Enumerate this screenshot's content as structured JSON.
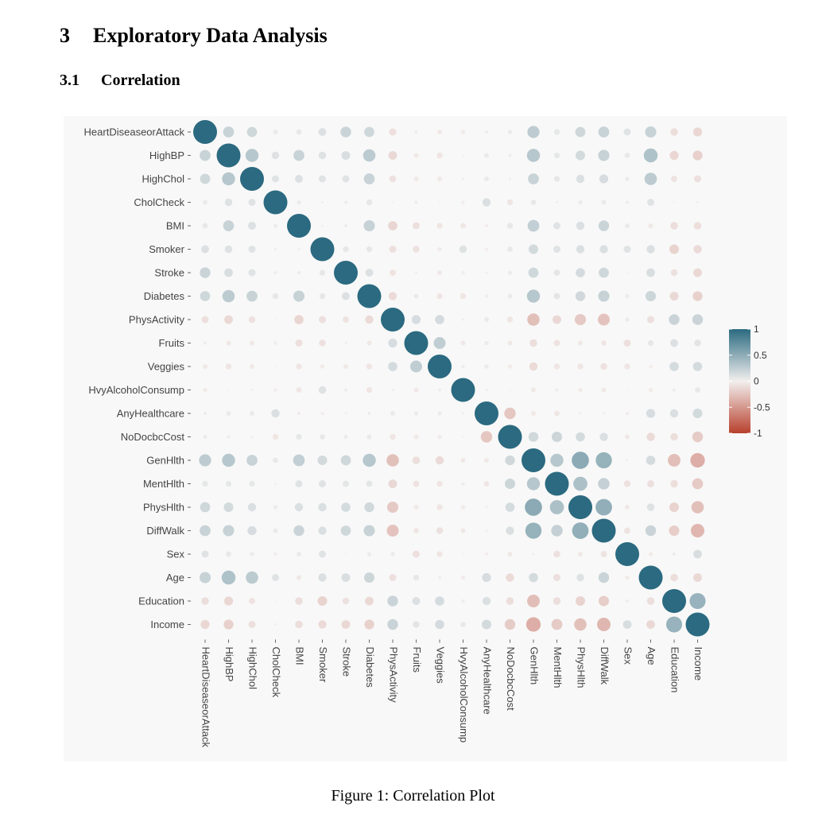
{
  "section": {
    "number": "3",
    "title": "Exploratory Data Analysis"
  },
  "subsection": {
    "number": "3.1",
    "title": "Correlation"
  },
  "caption": "Figure 1: Correlation Plot",
  "colors": {
    "positive": "#2b6a80",
    "neutral": "#f2efee",
    "negative": "#b8402d",
    "panel_bg": "#f8f8f8"
  },
  "chart_data": {
    "type": "heatmap",
    "style": "correlation-circle-plot",
    "variables": [
      "HeartDiseaseorAttack",
      "HighBP",
      "HighChol",
      "CholCheck",
      "BMI",
      "Smoker",
      "Stroke",
      "Diabetes",
      "PhysActivity",
      "Fruits",
      "Veggies",
      "HvyAlcoholConsump",
      "AnyHealthcare",
      "NoDocbcCost",
      "GenHlth",
      "MentHlth",
      "PhysHlth",
      "DiffWalk",
      "Sex",
      "Age",
      "Education",
      "Income"
    ],
    "legend": {
      "ticks": [
        "1",
        "0.5",
        "0",
        "-0.5",
        "-1"
      ],
      "range": [
        -1,
        1
      ],
      "position": "right"
    },
    "correlations": [
      [
        "HeartDiseaseorAttack",
        "HighBP",
        0.21
      ],
      [
        "HeartDiseaseorAttack",
        "HighChol",
        0.18
      ],
      [
        "HeartDiseaseorAttack",
        "CholCheck",
        0.04
      ],
      [
        "HeartDiseaseorAttack",
        "BMI",
        0.05
      ],
      [
        "HeartDiseaseorAttack",
        "Smoker",
        0.11
      ],
      [
        "HeartDiseaseorAttack",
        "Stroke",
        0.2
      ],
      [
        "HeartDiseaseorAttack",
        "Diabetes",
        0.18
      ],
      [
        "HeartDiseaseorAttack",
        "PhysActivity",
        -0.09
      ],
      [
        "HeartDiseaseorAttack",
        "Fruits",
        -0.02
      ],
      [
        "HeartDiseaseorAttack",
        "Veggies",
        -0.04
      ],
      [
        "HeartDiseaseorAttack",
        "HvyAlcoholConsump",
        -0.03
      ],
      [
        "HeartDiseaseorAttack",
        "AnyHealthcare",
        0.02
      ],
      [
        "HeartDiseaseorAttack",
        "NoDocbcCost",
        0.03
      ],
      [
        "HeartDiseaseorAttack",
        "GenHlth",
        0.26
      ],
      [
        "HeartDiseaseorAttack",
        "MentHlth",
        0.06
      ],
      [
        "HeartDiseaseorAttack",
        "PhysHlth",
        0.18
      ],
      [
        "HeartDiseaseorAttack",
        "DiffWalk",
        0.21
      ],
      [
        "HeartDiseaseorAttack",
        "Sex",
        0.09
      ],
      [
        "HeartDiseaseorAttack",
        "Age",
        0.22
      ],
      [
        "HeartDiseaseorAttack",
        "Education",
        -0.1
      ],
      [
        "HeartDiseaseorAttack",
        "Income",
        -0.14
      ],
      [
        "HighBP",
        "HighChol",
        0.3
      ],
      [
        "HighBP",
        "CholCheck",
        0.1
      ],
      [
        "HighBP",
        "BMI",
        0.21
      ],
      [
        "HighBP",
        "Smoker",
        0.1
      ],
      [
        "HighBP",
        "Stroke",
        0.13
      ],
      [
        "HighBP",
        "Diabetes",
        0.27
      ],
      [
        "HighBP",
        "PhysActivity",
        -0.13
      ],
      [
        "HighBP",
        "Fruits",
        -0.04
      ],
      [
        "HighBP",
        "Veggies",
        -0.06
      ],
      [
        "HighBP",
        "HvyAlcoholConsump",
        -0.0
      ],
      [
        "HighBP",
        "AnyHealthcare",
        0.04
      ],
      [
        "HighBP",
        "NoDocbcCost",
        0.02
      ],
      [
        "HighBP",
        "GenHlth",
        0.3
      ],
      [
        "HighBP",
        "MentHlth",
        0.06
      ],
      [
        "HighBP",
        "PhysHlth",
        0.16
      ],
      [
        "HighBP",
        "DiffWalk",
        0.22
      ],
      [
        "HighBP",
        "Sex",
        0.05
      ],
      [
        "HighBP",
        "Age",
        0.34
      ],
      [
        "HighBP",
        "Education",
        -0.14
      ],
      [
        "HighBP",
        "Income",
        -0.17
      ],
      [
        "HighChol",
        "CholCheck",
        0.09
      ],
      [
        "HighChol",
        "BMI",
        0.11
      ],
      [
        "HighChol",
        "Smoker",
        0.09
      ],
      [
        "HighChol",
        "Stroke",
        0.09
      ],
      [
        "HighChol",
        "Diabetes",
        0.21
      ],
      [
        "HighChol",
        "PhysActivity",
        -0.08
      ],
      [
        "HighChol",
        "Fruits",
        -0.04
      ],
      [
        "HighChol",
        "Veggies",
        -0.04
      ],
      [
        "HighChol",
        "HvyAlcoholConsump",
        -0.01
      ],
      [
        "HighChol",
        "AnyHealthcare",
        0.04
      ],
      [
        "HighChol",
        "NoDocbcCost",
        0.01
      ],
      [
        "HighChol",
        "GenHlth",
        0.21
      ],
      [
        "HighChol",
        "MentHlth",
        0.06
      ],
      [
        "HighChol",
        "PhysHlth",
        0.12
      ],
      [
        "HighChol",
        "DiffWalk",
        0.14
      ],
      [
        "HighChol",
        "Sex",
        0.03
      ],
      [
        "HighChol",
        "Age",
        0.27
      ],
      [
        "HighChol",
        "Education",
        -0.07
      ],
      [
        "HighChol",
        "Income",
        -0.09
      ],
      [
        "CholCheck",
        "BMI",
        0.03
      ],
      [
        "CholCheck",
        "Smoker",
        -0.01
      ],
      [
        "CholCheck",
        "Stroke",
        0.02
      ],
      [
        "CholCheck",
        "Diabetes",
        0.06
      ],
      [
        "CholCheck",
        "PhysActivity",
        0.0
      ],
      [
        "CholCheck",
        "Fruits",
        0.02
      ],
      [
        "CholCheck",
        "Veggies",
        0.0
      ],
      [
        "CholCheck",
        "HvyAlcoholConsump",
        -0.02
      ],
      [
        "CholCheck",
        "AnyHealthcare",
        0.12
      ],
      [
        "CholCheck",
        "NoDocbcCost",
        -0.06
      ],
      [
        "CholCheck",
        "GenHlth",
        0.05
      ],
      [
        "CholCheck",
        "MentHlth",
        -0.01
      ],
      [
        "CholCheck",
        "PhysHlth",
        0.03
      ],
      [
        "CholCheck",
        "DiffWalk",
        0.04
      ],
      [
        "CholCheck",
        "Sex",
        -0.02
      ],
      [
        "CholCheck",
        "Age",
        0.09
      ],
      [
        "CholCheck",
        "Education",
        0.0
      ],
      [
        "CholCheck",
        "Income",
        0.01
      ],
      [
        "BMI",
        "Smoker",
        0.01
      ],
      [
        "BMI",
        "Stroke",
        0.02
      ],
      [
        "BMI",
        "Diabetes",
        0.22
      ],
      [
        "BMI",
        "PhysActivity",
        -0.15
      ],
      [
        "BMI",
        "Fruits",
        -0.09
      ],
      [
        "BMI",
        "Veggies",
        -0.06
      ],
      [
        "BMI",
        "HvyAlcoholConsump",
        -0.05
      ],
      [
        "BMI",
        "AnyHealthcare",
        -0.02
      ],
      [
        "BMI",
        "NoDocbcCost",
        0.06
      ],
      [
        "BMI",
        "GenHlth",
        0.24
      ],
      [
        "BMI",
        "MentHlth",
        0.09
      ],
      [
        "BMI",
        "PhysHlth",
        0.12
      ],
      [
        "BMI",
        "DiffWalk",
        0.2
      ],
      [
        "BMI",
        "Sex",
        0.04
      ],
      [
        "BMI",
        "Age",
        -0.04
      ],
      [
        "BMI",
        "Education",
        -0.1
      ],
      [
        "BMI",
        "Income",
        -0.1
      ],
      [
        "Smoker",
        "Stroke",
        0.06
      ],
      [
        "Smoker",
        "Diabetes",
        0.06
      ],
      [
        "Smoker",
        "PhysActivity",
        -0.09
      ],
      [
        "Smoker",
        "Fruits",
        -0.08
      ],
      [
        "Smoker",
        "Veggies",
        -0.03
      ],
      [
        "Smoker",
        "HvyAlcoholConsump",
        0.1
      ],
      [
        "Smoker",
        "AnyHealthcare",
        -0.02
      ],
      [
        "Smoker",
        "NoDocbcCost",
        0.05
      ],
      [
        "Smoker",
        "GenHlth",
        0.16
      ],
      [
        "Smoker",
        "MentHlth",
        0.09
      ],
      [
        "Smoker",
        "PhysHlth",
        0.12
      ],
      [
        "Smoker",
        "DiffWalk",
        0.12
      ],
      [
        "Smoker",
        "Sex",
        0.09
      ],
      [
        "Smoker",
        "Age",
        0.12
      ],
      [
        "Smoker",
        "Education",
        -0.16
      ],
      [
        "Smoker",
        "Income",
        -0.12
      ],
      [
        "Stroke",
        "Diabetes",
        0.11
      ],
      [
        "Stroke",
        "PhysActivity",
        -0.07
      ],
      [
        "Stroke",
        "Fruits",
        -0.01
      ],
      [
        "Stroke",
        "Veggies",
        -0.04
      ],
      [
        "Stroke",
        "HvyAlcoholConsump",
        -0.02
      ],
      [
        "Stroke",
        "AnyHealthcare",
        0.01
      ],
      [
        "Stroke",
        "NoDocbcCost",
        0.03
      ],
      [
        "Stroke",
        "GenHlth",
        0.18
      ],
      [
        "Stroke",
        "MentHlth",
        0.07
      ],
      [
        "Stroke",
        "PhysHlth",
        0.15
      ],
      [
        "Stroke",
        "DiffWalk",
        0.18
      ],
      [
        "Stroke",
        "Sex",
        0.0
      ],
      [
        "Stroke",
        "Age",
        0.13
      ],
      [
        "Stroke",
        "Education",
        -0.08
      ],
      [
        "Stroke",
        "Income",
        -0.13
      ],
      [
        "Diabetes",
        "PhysActivity",
        -0.12
      ],
      [
        "Diabetes",
        "Fruits",
        -0.04
      ],
      [
        "Diabetes",
        "Veggies",
        -0.06
      ],
      [
        "Diabetes",
        "HvyAlcoholConsump",
        -0.06
      ],
      [
        "Diabetes",
        "AnyHealthcare",
        0.02
      ],
      [
        "Diabetes",
        "NoDocbcCost",
        0.04
      ],
      [
        "Diabetes",
        "GenHlth",
        0.3
      ],
      [
        "Diabetes",
        "MentHlth",
        0.07
      ],
      [
        "Diabetes",
        "PhysHlth",
        0.17
      ],
      [
        "Diabetes",
        "DiffWalk",
        0.22
      ],
      [
        "Diabetes",
        "Sex",
        0.03
      ],
      [
        "Diabetes",
        "Age",
        0.19
      ],
      [
        "Diabetes",
        "Education",
        -0.13
      ],
      [
        "Diabetes",
        "Income",
        -0.17
      ],
      [
        "PhysActivity",
        "Fruits",
        0.14
      ],
      [
        "PhysActivity",
        "Veggies",
        0.15
      ],
      [
        "PhysActivity",
        "HvyAlcoholConsump",
        0.01
      ],
      [
        "PhysActivity",
        "AnyHealthcare",
        0.04
      ],
      [
        "PhysActivity",
        "NoDocbcCost",
        -0.06
      ],
      [
        "PhysActivity",
        "GenHlth",
        -0.27
      ],
      [
        "PhysActivity",
        "MentHlth",
        -0.13
      ],
      [
        "PhysActivity",
        "PhysHlth",
        -0.22
      ],
      [
        "PhysActivity",
        "DiffWalk",
        -0.25
      ],
      [
        "PhysActivity",
        "Sex",
        0.03
      ],
      [
        "PhysActivity",
        "Age",
        -0.09
      ],
      [
        "PhysActivity",
        "Education",
        0.2
      ],
      [
        "PhysActivity",
        "Income",
        0.2
      ],
      [
        "Fruits",
        "Veggies",
        0.25
      ],
      [
        "Fruits",
        "HvyAlcoholConsump",
        -0.04
      ],
      [
        "Fruits",
        "AnyHealthcare",
        0.03
      ],
      [
        "Fruits",
        "NoDocbcCost",
        -0.04
      ],
      [
        "Fruits",
        "GenHlth",
        -0.1
      ],
      [
        "Fruits",
        "MentHlth",
        -0.07
      ],
      [
        "Fruits",
        "PhysHlth",
        -0.04
      ],
      [
        "Fruits",
        "DiffWalk",
        -0.05
      ],
      [
        "Fruits",
        "Sex",
        -0.09
      ],
      [
        "Fruits",
        "Age",
        0.06
      ],
      [
        "Fruits",
        "Education",
        0.11
      ],
      [
        "Fruits",
        "Income",
        0.08
      ],
      [
        "Veggies",
        "HvyAlcoholConsump",
        0.02
      ],
      [
        "Veggies",
        "AnyHealthcare",
        0.03
      ],
      [
        "Veggies",
        "NoDocbcCost",
        -0.03
      ],
      [
        "Veggies",
        "GenHlth",
        -0.12
      ],
      [
        "Veggies",
        "MentHlth",
        -0.06
      ],
      [
        "Veggies",
        "PhysHlth",
        -0.06
      ],
      [
        "Veggies",
        "DiffWalk",
        -0.08
      ],
      [
        "Veggies",
        "Sex",
        -0.06
      ],
      [
        "Veggies",
        "Age",
        -0.02
      ],
      [
        "Veggies",
        "Education",
        0.15
      ],
      [
        "Veggies",
        "Income",
        0.15
      ],
      [
        "HvyAlcoholConsump",
        "AnyHealthcare",
        -0.01
      ],
      [
        "HvyAlcoholConsump",
        "NoDocbcCost",
        0.0
      ],
      [
        "HvyAlcoholConsump",
        "GenHlth",
        -0.04
      ],
      [
        "HvyAlcoholConsump",
        "MentHlth",
        0.02
      ],
      [
        "HvyAlcoholConsump",
        "PhysHlth",
        -0.03
      ],
      [
        "HvyAlcoholConsump",
        "DiffWalk",
        -0.04
      ],
      [
        "HvyAlcoholConsump",
        "Sex",
        0.0
      ],
      [
        "HvyAlcoholConsump",
        "Age",
        -0.03
      ],
      [
        "HvyAlcoholConsump",
        "Education",
        0.02
      ],
      [
        "HvyAlcoholConsump",
        "Income",
        0.05
      ],
      [
        "AnyHealthcare",
        "NoDocbcCost",
        -0.23
      ],
      [
        "AnyHealthcare",
        "GenHlth",
        -0.04
      ],
      [
        "AnyHealthcare",
        "MentHlth",
        -0.05
      ],
      [
        "AnyHealthcare",
        "PhysHlth",
        -0.01
      ],
      [
        "AnyHealthcare",
        "DiffWalk",
        0.01
      ],
      [
        "AnyHealthcare",
        "Sex",
        -0.02
      ],
      [
        "AnyHealthcare",
        "Age",
        0.14
      ],
      [
        "AnyHealthcare",
        "Education",
        0.12
      ],
      [
        "AnyHealthcare",
        "Income",
        0.16
      ],
      [
        "NoDocbcCost",
        "GenHlth",
        0.17
      ],
      [
        "NoDocbcCost",
        "MentHlth",
        0.19
      ],
      [
        "NoDocbcCost",
        "PhysHlth",
        0.15
      ],
      [
        "NoDocbcCost",
        "DiffWalk",
        0.12
      ],
      [
        "NoDocbcCost",
        "Sex",
        -0.04
      ],
      [
        "NoDocbcCost",
        "Age",
        -0.12
      ],
      [
        "NoDocbcCost",
        "Education",
        -0.1
      ],
      [
        "NoDocbcCost",
        "Income",
        -0.2
      ],
      [
        "GenHlth",
        "MentHlth",
        0.3
      ],
      [
        "GenHlth",
        "PhysHlth",
        0.52
      ],
      [
        "GenHlth",
        "DiffWalk",
        0.46
      ],
      [
        "GenHlth",
        "Sex",
        -0.01
      ],
      [
        "GenHlth",
        "Age",
        0.15
      ],
      [
        "GenHlth",
        "Education",
        -0.28
      ],
      [
        "GenHlth",
        "Income",
        -0.37
      ],
      [
        "MentHlth",
        "PhysHlth",
        0.35
      ],
      [
        "MentHlth",
        "DiffWalk",
        0.23
      ],
      [
        "MentHlth",
        "Sex",
        -0.08
      ],
      [
        "MentHlth",
        "Age",
        -0.09
      ],
      [
        "MentHlth",
        "Education",
        -0.1
      ],
      [
        "MentHlth",
        "Income",
        -0.21
      ],
      [
        "PhysHlth",
        "DiffWalk",
        0.48
      ],
      [
        "PhysHlth",
        "Sex",
        -0.04
      ],
      [
        "PhysHlth",
        "Age",
        0.1
      ],
      [
        "PhysHlth",
        "Education",
        -0.16
      ],
      [
        "PhysHlth",
        "Income",
        -0.27
      ],
      [
        "DiffWalk",
        "Sex",
        -0.07
      ],
      [
        "DiffWalk",
        "Age",
        0.2
      ],
      [
        "DiffWalk",
        "Education",
        -0.19
      ],
      [
        "DiffWalk",
        "Income",
        -0.32
      ],
      [
        "Sex",
        "Age",
        -0.03
      ],
      [
        "Sex",
        "Education",
        0.02
      ],
      [
        "Sex",
        "Income",
        0.13
      ],
      [
        "Age",
        "Education",
        -0.1
      ],
      [
        "Age",
        "Income",
        -0.13
      ],
      [
        "Education",
        "Income",
        0.45
      ]
    ]
  }
}
